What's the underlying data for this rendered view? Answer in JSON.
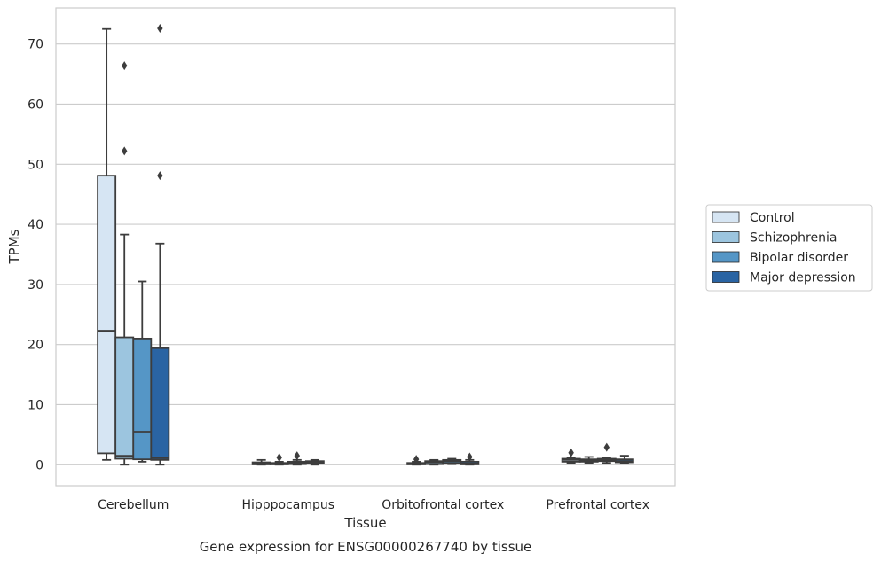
{
  "chart_data": {
    "type": "box",
    "xlabel": "Tissue",
    "ylabel": "TPMs",
    "caption": "Gene expression for ENSG00000267740 by tissue",
    "ylim": [
      -3.5,
      76
    ],
    "yticks": [
      0,
      10,
      20,
      30,
      40,
      50,
      60,
      70
    ],
    "grid": true,
    "legend_position": "right",
    "categories": [
      "Cerebellum",
      "Hipppocampus",
      "Orbitofrontal cortex",
      "Prefrontal cortex"
    ],
    "series": [
      {
        "name": "Control",
        "color": "#d6e5f3",
        "boxes": [
          {
            "whisker_low": 0.8,
            "q1": 1.9,
            "median": 22.3,
            "q3": 48.1,
            "whisker_high": 72.5,
            "outliers": []
          },
          {
            "whisker_low": 0.0,
            "q1": 0.05,
            "median": 0.2,
            "q3": 0.4,
            "whisker_high": 0.8,
            "outliers": []
          },
          {
            "whisker_low": 0.0,
            "q1": 0.05,
            "median": 0.15,
            "q3": 0.3,
            "whisker_high": 0.5,
            "outliers": [
              0.9
            ]
          },
          {
            "whisker_low": 0.3,
            "q1": 0.5,
            "median": 0.8,
            "q3": 1.0,
            "whisker_high": 1.2,
            "outliers": [
              2.0
            ]
          }
        ]
      },
      {
        "name": "Schizophrenia",
        "color": "#9cc5df",
        "boxes": [
          {
            "whisker_low": 0.0,
            "q1": 1.0,
            "median": 1.5,
            "q3": 21.2,
            "whisker_high": 38.3,
            "outliers": [
              52.2,
              66.4
            ]
          },
          {
            "whisker_low": 0.0,
            "q1": 0.05,
            "median": 0.15,
            "q3": 0.3,
            "whisker_high": 0.5,
            "outliers": [
              1.2
            ]
          },
          {
            "whisker_low": 0.0,
            "q1": 0.1,
            "median": 0.4,
            "q3": 0.6,
            "whisker_high": 0.8,
            "outliers": []
          },
          {
            "whisker_low": 0.3,
            "q1": 0.5,
            "median": 0.7,
            "q3": 0.9,
            "whisker_high": 1.3,
            "outliers": []
          }
        ]
      },
      {
        "name": "Bipolar disorder",
        "color": "#5596c6",
        "boxes": [
          {
            "whisker_low": 0.5,
            "q1": 0.9,
            "median": 5.5,
            "q3": 21.0,
            "whisker_high": 30.5,
            "outliers": []
          },
          {
            "whisker_low": 0.0,
            "q1": 0.1,
            "median": 0.3,
            "q3": 0.5,
            "whisker_high": 0.8,
            "outliers": [
              1.5
            ]
          },
          {
            "whisker_low": 0.1,
            "q1": 0.3,
            "median": 0.6,
            "q3": 0.8,
            "whisker_high": 1.0,
            "outliers": []
          },
          {
            "whisker_low": 0.3,
            "q1": 0.6,
            "median": 0.8,
            "q3": 1.0,
            "whisker_high": 1.1,
            "outliers": [
              2.9
            ]
          }
        ]
      },
      {
        "name": "Major depression",
        "color": "#2a64a3",
        "boxes": [
          {
            "whisker_low": 0.0,
            "q1": 0.8,
            "median": 1.1,
            "q3": 19.4,
            "whisker_high": 36.8,
            "outliers": [
              48.1,
              72.6
            ]
          },
          {
            "whisker_low": 0.0,
            "q1": 0.2,
            "median": 0.4,
            "q3": 0.6,
            "whisker_high": 0.8,
            "outliers": []
          },
          {
            "whisker_low": 0.0,
            "q1": 0.05,
            "median": 0.2,
            "q3": 0.5,
            "whisker_high": 0.8,
            "outliers": [
              1.3
            ]
          },
          {
            "whisker_low": 0.2,
            "q1": 0.4,
            "median": 0.6,
            "q3": 0.9,
            "whisker_high": 1.5,
            "outliers": []
          }
        ]
      }
    ]
  }
}
